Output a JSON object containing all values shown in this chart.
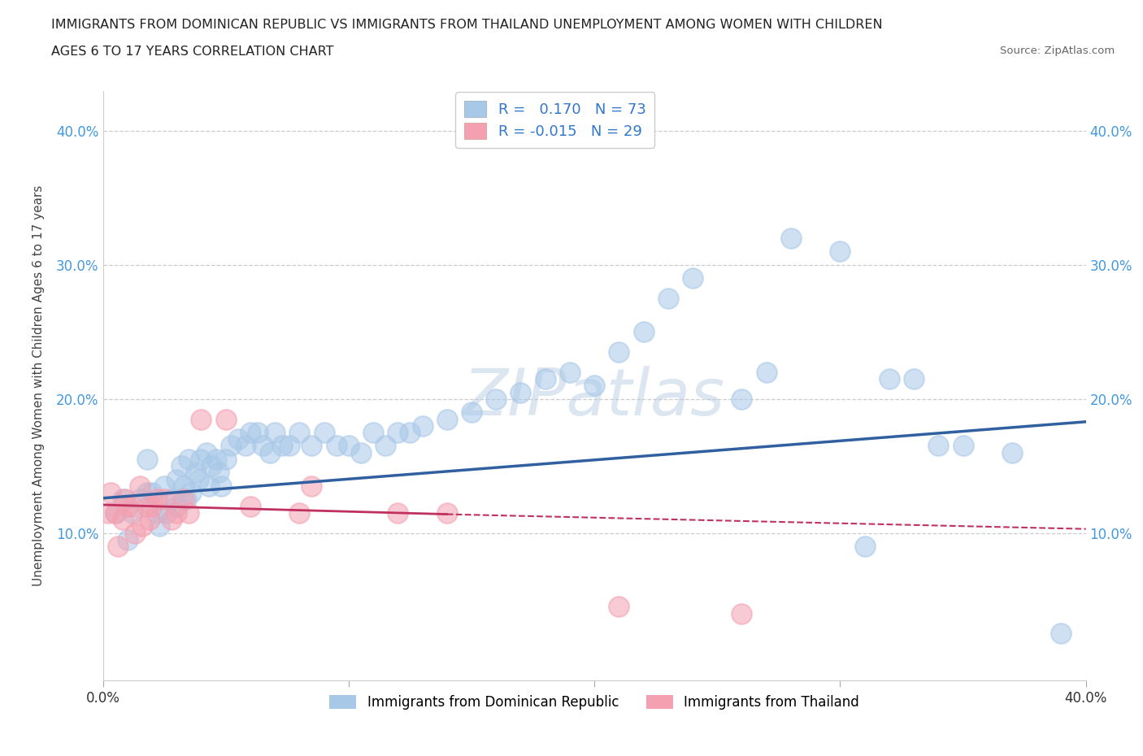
{
  "title_line1": "IMMIGRANTS FROM DOMINICAN REPUBLIC VS IMMIGRANTS FROM THAILAND UNEMPLOYMENT AMONG WOMEN WITH CHILDREN",
  "title_line2": "AGES 6 TO 17 YEARS CORRELATION CHART",
  "source_text": "Source: ZipAtlas.com",
  "ylabel": "Unemployment Among Women with Children Ages 6 to 17 years",
  "watermark": "ZIPatlas",
  "r_dominican": 0.17,
  "n_dominican": 73,
  "r_thailand": -0.015,
  "n_thailand": 29,
  "legend_label_dominican": "Immigrants from Dominican Republic",
  "legend_label_thailand": "Immigrants from Thailand",
  "xlim": [
    0.0,
    0.4
  ],
  "ylim": [
    -0.01,
    0.43
  ],
  "xticks": [
    0.0,
    0.1,
    0.2,
    0.3,
    0.4
  ],
  "yticks": [
    0.1,
    0.2,
    0.3,
    0.4
  ],
  "xticklabels": [
    "0.0%",
    "",
    "",
    "",
    "40.0%"
  ],
  "yticklabels": [
    "10.0%",
    "20.0%",
    "30.0%",
    "40.0%"
  ],
  "color_dominican": "#a8c8e8",
  "color_thailand": "#f4a0b0",
  "line_color_dominican": "#3060a0",
  "line_color_thailand": "#c03060",
  "background_color": "#ffffff",
  "grid_color": "#cccccc",
  "scatter_dominican_x": [
    0.005,
    0.008,
    0.01,
    0.012,
    0.015,
    0.018,
    0.018,
    0.02,
    0.022,
    0.023,
    0.025,
    0.026,
    0.028,
    0.03,
    0.03,
    0.032,
    0.033,
    0.034,
    0.035,
    0.036,
    0.038,
    0.039,
    0.04,
    0.042,
    0.043,
    0.044,
    0.046,
    0.047,
    0.048,
    0.05,
    0.052,
    0.055,
    0.058,
    0.06,
    0.063,
    0.065,
    0.068,
    0.07,
    0.073,
    0.076,
    0.08,
    0.085,
    0.09,
    0.095,
    0.1,
    0.105,
    0.11,
    0.115,
    0.12,
    0.125,
    0.13,
    0.14,
    0.15,
    0.16,
    0.17,
    0.18,
    0.19,
    0.2,
    0.21,
    0.22,
    0.23,
    0.24,
    0.26,
    0.27,
    0.28,
    0.3,
    0.31,
    0.32,
    0.33,
    0.34,
    0.35,
    0.37,
    0.39
  ],
  "scatter_dominican_y": [
    0.115,
    0.125,
    0.095,
    0.115,
    0.125,
    0.155,
    0.13,
    0.13,
    0.115,
    0.105,
    0.135,
    0.115,
    0.125,
    0.14,
    0.12,
    0.15,
    0.135,
    0.125,
    0.155,
    0.13,
    0.145,
    0.14,
    0.155,
    0.16,
    0.135,
    0.15,
    0.155,
    0.145,
    0.135,
    0.155,
    0.165,
    0.17,
    0.165,
    0.175,
    0.175,
    0.165,
    0.16,
    0.175,
    0.165,
    0.165,
    0.175,
    0.165,
    0.175,
    0.165,
    0.165,
    0.16,
    0.175,
    0.165,
    0.175,
    0.175,
    0.18,
    0.185,
    0.19,
    0.2,
    0.205,
    0.215,
    0.22,
    0.21,
    0.235,
    0.25,
    0.275,
    0.29,
    0.2,
    0.22,
    0.32,
    0.31,
    0.09,
    0.215,
    0.215,
    0.165,
    0.165,
    0.16,
    0.025
  ],
  "scatter_thailand_x": [
    0.002,
    0.003,
    0.005,
    0.006,
    0.008,
    0.009,
    0.01,
    0.012,
    0.013,
    0.015,
    0.016,
    0.018,
    0.019,
    0.02,
    0.022,
    0.025,
    0.028,
    0.03,
    0.033,
    0.035,
    0.04,
    0.05,
    0.06,
    0.08,
    0.085,
    0.12,
    0.14,
    0.21,
    0.26
  ],
  "scatter_thailand_y": [
    0.115,
    0.13,
    0.115,
    0.09,
    0.11,
    0.125,
    0.12,
    0.12,
    0.1,
    0.135,
    0.105,
    0.12,
    0.11,
    0.12,
    0.125,
    0.125,
    0.11,
    0.115,
    0.125,
    0.115,
    0.185,
    0.185,
    0.12,
    0.115,
    0.135,
    0.115,
    0.115,
    0.045,
    0.04
  ],
  "trend_dominican_x0": 0.0,
  "trend_dominican_x1": 0.4,
  "trend_dominican_y0": 0.126,
  "trend_dominican_y1": 0.183,
  "trend_thailand_solid_x0": 0.0,
  "trend_thailand_solid_x1": 0.14,
  "trend_thailand_solid_y0": 0.121,
  "trend_thailand_solid_y1": 0.114,
  "trend_thailand_dash_x0": 0.14,
  "trend_thailand_dash_x1": 0.4,
  "trend_thailand_dash_y0": 0.114,
  "trend_thailand_dash_y1": 0.103
}
